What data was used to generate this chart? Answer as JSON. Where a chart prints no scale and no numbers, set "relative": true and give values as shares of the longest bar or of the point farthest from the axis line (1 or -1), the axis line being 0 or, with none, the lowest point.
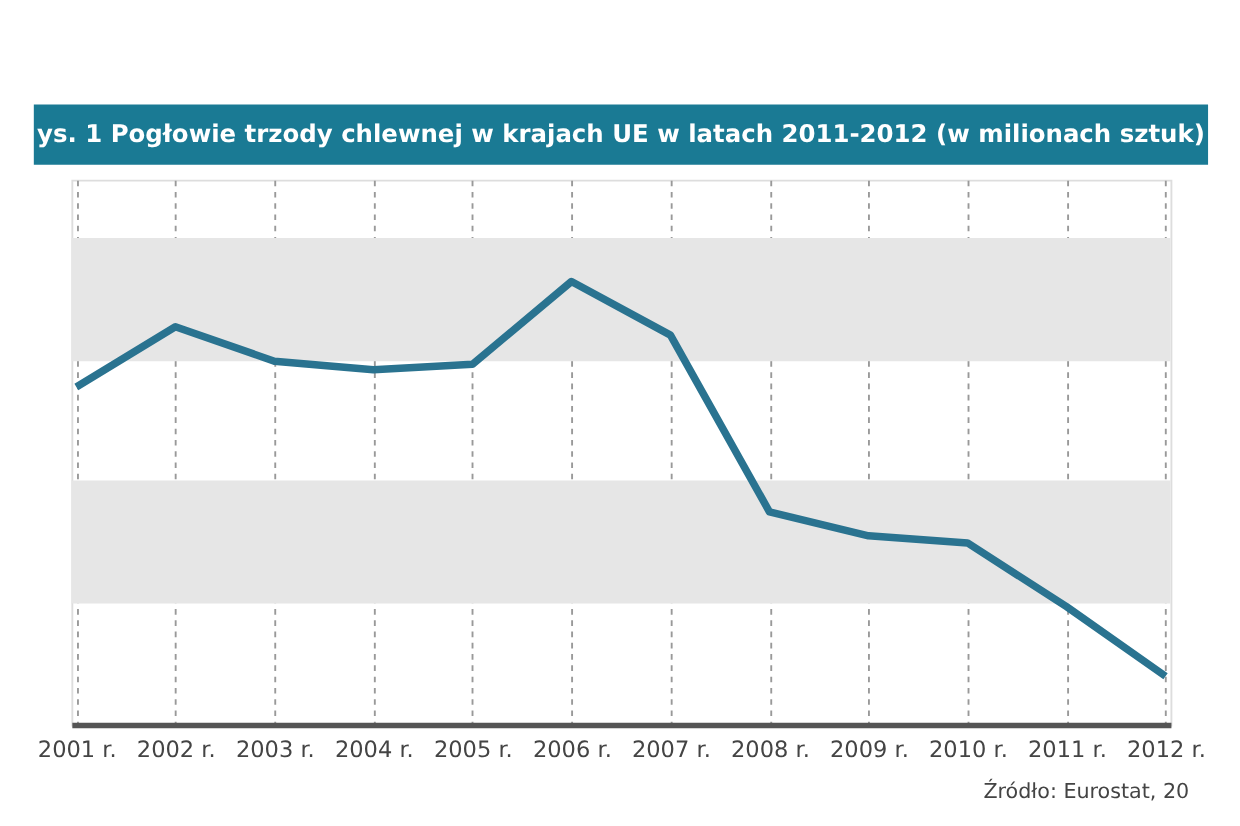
{
  "chart_data": {
    "type": "line",
    "title": "ys. 1 Pogłowie trzody chlewnej w krajach UE w latach 2011-2012 (w milionach sztuk)",
    "categories": [
      "2001 r.",
      "2002 r.",
      "2003 r.",
      "2004 r.",
      "2005 r.",
      "2006 r.",
      "2007 r.",
      "2008 r.",
      "2009 r.",
      "2010 r.",
      "2011 r.",
      "2012 r."
    ],
    "series": [
      {
        "color": "#2a7390",
        "values": [
          0.762,
          0.898,
          0.82,
          0.801,
          0.813,
          1,
          0.879,
          0.48,
          0.426,
          0.41,
          0.266,
          0.109
        ]
      }
    ],
    "relative": true,
    "grid": "x",
    "marker": "none",
    "line_style": "solid",
    "bands": [
      {
        "axis": "y",
        "from": 0.82,
        "to": 1.098,
        "color": "#e6e6e6"
      },
      {
        "axis": "y",
        "from": 0.273,
        "to": 0.551,
        "color": "#e6e6e6"
      }
    ],
    "annotations": [
      "Źródło: Eurostat, 20"
    ]
  }
}
